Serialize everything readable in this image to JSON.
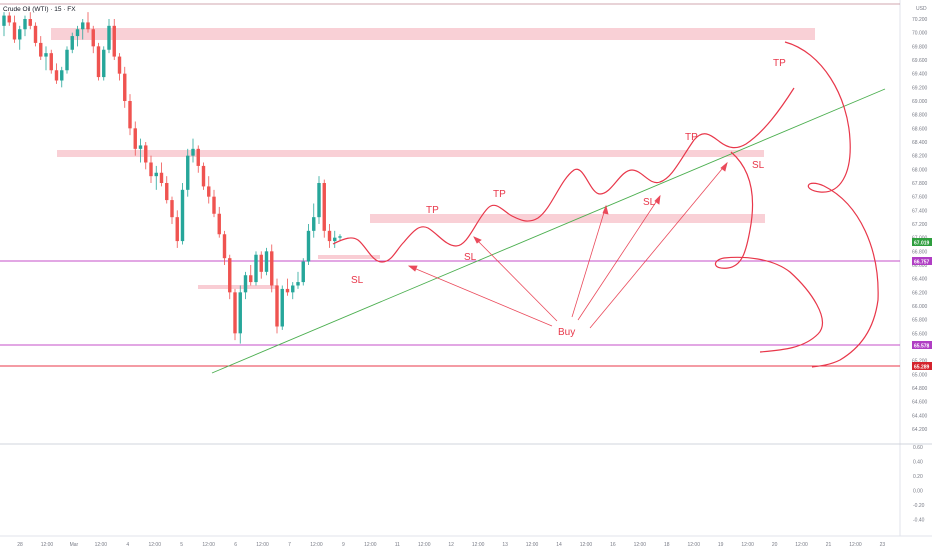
{
  "title": "Crude Oil (WTI) · 15 · FX",
  "currency": "USD",
  "colors": {
    "up": "#26a69a",
    "down": "#ef5350",
    "annotation": "#e8374a",
    "zone": "#f8c8cf",
    "trendline": "#4caf50",
    "level_purple": "#c44fc9",
    "level_red": "#e8374a",
    "last_price": "#2e9e3e",
    "badge_purple": "#b03ec4",
    "badge_red": "#d4232d"
  },
  "price_axis": {
    "labels": [
      "70.200",
      "70.000",
      "69.800",
      "69.600",
      "69.400",
      "69.200",
      "69.000",
      "68.800",
      "68.600",
      "68.400",
      "68.200",
      "68.000",
      "67.800",
      "67.600",
      "67.400",
      "67.200",
      "67.000",
      "66.800",
      "66.600",
      "66.400",
      "66.200",
      "66.000",
      "65.800",
      "65.600",
      "65.400",
      "65.200",
      "65.000",
      "64.800",
      "64.600",
      "64.400",
      "64.200"
    ],
    "badges": {
      "last_price": "67.019",
      "level_upper": "66.757",
      "level_middle": "65.578",
      "level_lower": "65.289"
    }
  },
  "indicator_axis": {
    "labels": [
      "0.60",
      "0.40",
      "0.20",
      "0.00",
      "-0.20",
      "-0.40"
    ]
  },
  "time_axis": {
    "labels": [
      "28",
      "12:00",
      "Mar",
      "12:00",
      "4",
      "12:00",
      "5",
      "12:00",
      "6",
      "12:00",
      "7",
      "12:00",
      "9",
      "12:00",
      "11",
      "12:00",
      "12",
      "12:00",
      "13",
      "12:00",
      "14",
      "12:00",
      "16",
      "12:00",
      "18",
      "12:00",
      "19",
      "12:00",
      "20",
      "12:00",
      "21",
      "12:00",
      "23"
    ]
  },
  "annotations": {
    "tp": [
      "TP",
      "TP",
      "TP",
      "TP"
    ],
    "sl": [
      "SL",
      "SL",
      "SL",
      "SL"
    ],
    "buy": "Buy"
  },
  "candles": [
    [
      70.1,
      70.3,
      69.95,
      70.25
    ],
    [
      70.25,
      70.3,
      70.1,
      70.15
    ],
    [
      70.15,
      70.25,
      69.85,
      69.9
    ],
    [
      69.9,
      70.1,
      69.75,
      70.05
    ],
    [
      70.05,
      70.25,
      69.95,
      70.2
    ],
    [
      70.2,
      70.3,
      70.05,
      70.1
    ],
    [
      70.1,
      70.15,
      69.8,
      69.85
    ],
    [
      69.85,
      69.95,
      69.6,
      69.65
    ],
    [
      69.65,
      69.8,
      69.45,
      69.7
    ],
    [
      69.7,
      69.75,
      69.4,
      69.45
    ],
    [
      69.45,
      69.55,
      69.25,
      69.3
    ],
    [
      69.3,
      69.5,
      69.2,
      69.45
    ],
    [
      69.45,
      69.8,
      69.4,
      69.75
    ],
    [
      69.75,
      70.0,
      69.7,
      69.95
    ],
    [
      69.95,
      70.1,
      69.8,
      70.05
    ],
    [
      70.05,
      70.2,
      69.9,
      70.15
    ],
    [
      70.15,
      70.3,
      70.0,
      70.05
    ],
    [
      70.05,
      70.1,
      69.7,
      69.8
    ],
    [
      69.8,
      69.85,
      69.3,
      69.35
    ],
    [
      69.35,
      69.8,
      69.3,
      69.75
    ],
    [
      69.75,
      70.2,
      69.7,
      70.1
    ],
    [
      70.1,
      70.2,
      69.6,
      69.65
    ],
    [
      69.65,
      69.7,
      69.3,
      69.4
    ],
    [
      69.4,
      69.5,
      68.9,
      69.0
    ],
    [
      69.0,
      69.1,
      68.5,
      68.6
    ],
    [
      68.6,
      68.7,
      68.2,
      68.3
    ],
    [
      68.3,
      68.45,
      68.1,
      68.35
    ],
    [
      68.35,
      68.4,
      68.0,
      68.1
    ],
    [
      68.1,
      68.2,
      67.8,
      67.9
    ],
    [
      67.9,
      68.05,
      67.7,
      67.95
    ],
    [
      67.95,
      68.1,
      67.75,
      67.8
    ],
    [
      67.8,
      67.9,
      67.5,
      67.55
    ],
    [
      67.55,
      67.6,
      67.2,
      67.3
    ],
    [
      67.3,
      67.4,
      66.85,
      66.95
    ],
    [
      66.95,
      67.8,
      66.9,
      67.7
    ],
    [
      67.7,
      68.3,
      67.6,
      68.2
    ],
    [
      68.2,
      68.45,
      68.1,
      68.3
    ],
    [
      68.3,
      68.35,
      67.95,
      68.05
    ],
    [
      68.05,
      68.1,
      67.7,
      67.75
    ],
    [
      67.75,
      67.9,
      67.5,
      67.6
    ],
    [
      67.6,
      67.7,
      67.3,
      67.35
    ],
    [
      67.35,
      67.45,
      67.0,
      67.05
    ],
    [
      67.05,
      67.1,
      66.6,
      66.7
    ],
    [
      66.7,
      66.75,
      66.1,
      66.2
    ],
    [
      66.2,
      66.25,
      65.5,
      65.6
    ],
    [
      65.6,
      66.3,
      65.45,
      66.2
    ],
    [
      66.2,
      66.5,
      66.1,
      66.45
    ],
    [
      66.45,
      66.6,
      66.3,
      66.35
    ],
    [
      66.35,
      66.8,
      66.3,
      66.75
    ],
    [
      66.75,
      66.8,
      66.4,
      66.5
    ],
    [
      66.5,
      66.85,
      66.45,
      66.8
    ],
    [
      66.8,
      66.9,
      66.2,
      66.3
    ],
    [
      66.3,
      66.4,
      65.6,
      65.7
    ],
    [
      65.7,
      66.3,
      65.65,
      66.25
    ],
    [
      66.25,
      66.4,
      66.15,
      66.2
    ],
    [
      66.2,
      66.35,
      66.1,
      66.3
    ],
    [
      66.3,
      66.5,
      66.25,
      66.35
    ],
    [
      66.35,
      66.7,
      66.3,
      66.65
    ],
    [
      66.65,
      67.2,
      66.6,
      67.1
    ],
    [
      67.1,
      67.5,
      67.0,
      67.3
    ],
    [
      67.3,
      67.9,
      67.2,
      67.8
    ],
    [
      67.8,
      67.85,
      67.0,
      67.1
    ],
    [
      67.1,
      67.2,
      66.85,
      66.95
    ],
    [
      66.95,
      67.1,
      66.85,
      67.0
    ],
    [
      67.0,
      67.05,
      66.95,
      67.02
    ]
  ]
}
